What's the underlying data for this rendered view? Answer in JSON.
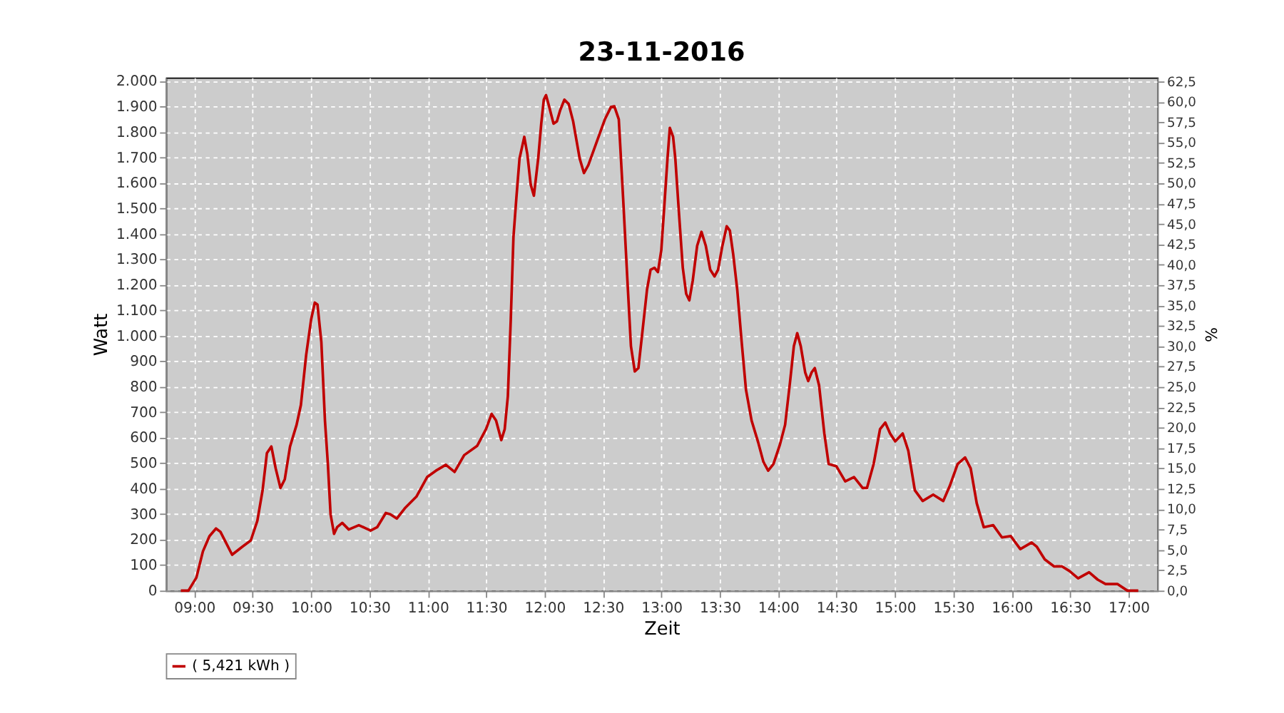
{
  "chart_data": {
    "type": "line",
    "title": "23-11-2016",
    "xlabel": "Zeit",
    "ylabel": "Watt",
    "y2label": "%",
    "x": [
      8.885,
      8.95,
      9.018,
      9.074,
      9.13,
      9.186,
      9.224,
      9.324,
      9.41,
      9.484,
      9.54,
      9.585,
      9.622,
      9.66,
      9.697,
      9.738,
      9.775,
      9.82,
      9.876,
      9.913,
      9.958,
      10.0,
      10.032,
      10.055,
      10.088,
      10.119,
      10.144,
      10.167,
      10.197,
      10.223,
      10.267,
      10.323,
      10.409,
      10.51,
      10.566,
      10.64,
      10.678,
      10.734,
      10.808,
      10.902,
      10.994,
      11.069,
      11.154,
      11.229,
      11.311,
      11.423,
      11.498,
      11.546,
      11.584,
      11.629,
      11.658,
      11.685,
      11.71,
      11.733,
      11.758,
      11.785,
      11.826,
      11.852,
      11.881,
      11.908,
      11.945,
      11.971,
      11.993,
      12.012,
      12.038,
      12.076,
      12.105,
      12.132,
      12.169,
      12.206,
      12.244,
      12.3,
      12.337,
      12.374,
      12.449,
      12.516,
      12.568,
      12.597,
      12.635,
      12.672,
      12.709,
      12.739,
      12.772,
      12.803,
      12.84,
      12.877,
      12.907,
      12.94,
      12.97,
      12.999,
      13.027,
      13.052,
      13.072,
      13.1,
      13.119,
      13.149,
      13.183,
      13.212,
      13.239,
      13.268,
      13.306,
      13.343,
      13.38,
      13.418,
      13.455,
      13.485,
      13.522,
      13.559,
      13.586,
      13.615,
      13.649,
      13.687,
      13.724,
      13.772,
      13.828,
      13.873,
      13.914,
      13.959,
      14.015,
      14.059,
      14.1,
      14.134,
      14.163,
      14.193,
      14.231,
      14.257,
      14.286,
      14.313,
      14.35,
      14.395,
      14.432,
      14.499,
      14.574,
      14.649,
      14.723,
      14.76,
      14.817,
      14.872,
      14.917,
      14.958,
      15.002,
      15.066,
      15.114,
      15.17,
      15.237,
      15.327,
      15.413,
      15.469,
      15.536,
      15.6,
      15.648,
      15.7,
      15.76,
      15.841,
      15.916,
      15.991,
      16.073,
      16.17,
      16.215,
      16.282,
      16.363,
      16.431,
      16.494,
      16.568,
      16.662,
      16.736,
      16.803,
      16.904,
      16.99,
      17.083
    ],
    "series": [
      {
        "name": "( 5,421 kWh )",
        "color": "#c00000",
        "values": [
          0,
          0,
          51,
          154,
          214,
          244,
          231,
          141,
          172,
          197,
          274,
          394,
          540,
          566,
          480,
          403,
          437,
          566,
          651,
          729,
          925,
          1063,
          1131,
          1123,
          977,
          668,
          497,
          300,
          223,
          249,
          266,
          240,
          257,
          236,
          249,
          305,
          300,
          283,
          326,
          369,
          446,
          471,
          494,
          466,
          532,
          569,
          634,
          694,
          668,
          591,
          634,
          763,
          1063,
          1388,
          1542,
          1697,
          1782,
          1714,
          1594,
          1551,
          1697,
          1834,
          1928,
          1946,
          1902,
          1834,
          1843,
          1885,
          1928,
          1911,
          1843,
          1697,
          1640,
          1671,
          1766,
          1851,
          1899,
          1902,
          1851,
          1542,
          1217,
          960,
          861,
          874,
          1028,
          1183,
          1260,
          1268,
          1251,
          1337,
          1525,
          1697,
          1817,
          1782,
          1697,
          1491,
          1268,
          1166,
          1140,
          1217,
          1354,
          1409,
          1354,
          1260,
          1234,
          1260,
          1354,
          1431,
          1414,
          1320,
          1183,
          977,
          789,
          668,
          583,
          506,
          471,
          497,
          574,
          651,
          814,
          960,
          1011,
          960,
          857,
          823,
          857,
          874,
          806,
          617,
          497,
          488,
          429,
          446,
          403,
          403,
          497,
          634,
          660,
          617,
          586,
          617,
          549,
          394,
          352,
          377,
          352,
          411,
          497,
          523,
          480,
          343,
          249,
          257,
          209,
          214,
          163,
          189,
          172,
          123,
          95,
          95,
          77,
          48,
          72,
          43,
          26,
          26,
          0,
          0
        ]
      }
    ],
    "xlim": [
      8.757,
      17.246
    ],
    "xticks": [
      {
        "value": 9,
        "label": "09:00"
      },
      {
        "value": 9.5,
        "label": "09:30"
      },
      {
        "value": 10,
        "label": "10:00"
      },
      {
        "value": 10.5,
        "label": "10:30"
      },
      {
        "value": 11,
        "label": "11:00"
      },
      {
        "value": 11.5,
        "label": "11:30"
      },
      {
        "value": 12,
        "label": "12:00"
      },
      {
        "value": 12.5,
        "label": "12:30"
      },
      {
        "value": 13,
        "label": "13:00"
      },
      {
        "value": 13.5,
        "label": "13:30"
      },
      {
        "value": 14,
        "label": "14:00"
      },
      {
        "value": 14.5,
        "label": "14:30"
      },
      {
        "value": 15,
        "label": "15:00"
      },
      {
        "value": 15.5,
        "label": "15:30"
      },
      {
        "value": 16,
        "label": "16:00"
      },
      {
        "value": 16.5,
        "label": "16:30"
      },
      {
        "value": 17,
        "label": "17:00"
      }
    ],
    "ylim": [
      0,
      2015
    ],
    "yticks": [
      0,
      100,
      200,
      300,
      400,
      500,
      600,
      700,
      800,
      900,
      {
        "value": 1000,
        "label": "1.000"
      },
      {
        "value": 1100,
        "label": "1.100"
      },
      {
        "value": 1200,
        "label": "1.200"
      },
      {
        "value": 1300,
        "label": "1.300"
      },
      {
        "value": 1400,
        "label": "1.400"
      },
      {
        "value": 1500,
        "label": "1.500"
      },
      {
        "value": 1600,
        "label": "1.600"
      },
      {
        "value": 1700,
        "label": "1.700"
      },
      {
        "value": 1800,
        "label": "1.800"
      },
      {
        "value": 1900,
        "label": "1.900"
      },
      {
        "value": 2000,
        "label": "2.000"
      }
    ],
    "y2lim": [
      0,
      62.97
    ],
    "y2ticks": [
      {
        "value": 0,
        "label": "0,0"
      },
      {
        "value": 2.5,
        "label": "2,5"
      },
      {
        "value": 5,
        "label": "5,0"
      },
      {
        "value": 7.5,
        "label": "7,5"
      },
      {
        "value": 10,
        "label": "10,0"
      },
      {
        "value": 12.5,
        "label": "12,5"
      },
      {
        "value": 15,
        "label": "15,0"
      },
      {
        "value": 17.5,
        "label": "17,5"
      },
      {
        "value": 20,
        "label": "20,0"
      },
      {
        "value": 22.5,
        "label": "22,5"
      },
      {
        "value": 25,
        "label": "25,0"
      },
      {
        "value": 27.5,
        "label": "27,5"
      },
      {
        "value": 30,
        "label": "30,0"
      },
      {
        "value": 32.5,
        "label": "32,5"
      },
      {
        "value": 35,
        "label": "35,0"
      },
      {
        "value": 37.5,
        "label": "37,5"
      },
      {
        "value": 40,
        "label": "40,0"
      },
      {
        "value": 42.5,
        "label": "42,5"
      },
      {
        "value": 45,
        "label": "45,0"
      },
      {
        "value": 47.5,
        "label": "47,5"
      },
      {
        "value": 50,
        "label": "50,0"
      },
      {
        "value": 52.5,
        "label": "52,5"
      },
      {
        "value": 55,
        "label": "55,0"
      },
      {
        "value": 57.5,
        "label": "57,5"
      },
      {
        "value": 60,
        "label": "60,0"
      },
      {
        "value": 62.5,
        "label": "62,5"
      }
    ],
    "grid": true,
    "legend": "bottom",
    "marker": "none",
    "line_style": "solid"
  }
}
